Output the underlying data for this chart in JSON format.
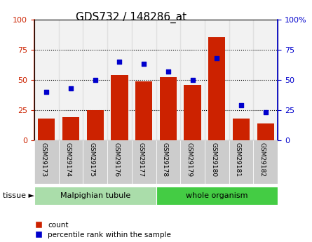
{
  "title": "GDS732 / 148286_at",
  "samples": [
    "GSM29173",
    "GSM29174",
    "GSM29175",
    "GSM29176",
    "GSM29177",
    "GSM29178",
    "GSM29179",
    "GSM29180",
    "GSM29181",
    "GSM29182"
  ],
  "counts": [
    18,
    19,
    25,
    54,
    49,
    52,
    46,
    85,
    18,
    14
  ],
  "percentiles": [
    40,
    43,
    50,
    65,
    63,
    57,
    50,
    68,
    29,
    23
  ],
  "tissue_groups": [
    {
      "label": "Malpighian tubule",
      "start": 0,
      "end": 5,
      "color": "#aaddaa"
    },
    {
      "label": "whole organism",
      "start": 5,
      "end": 10,
      "color": "#44cc44"
    }
  ],
  "bar_color": "#CC2200",
  "dot_color": "#0000CC",
  "ylim": [
    0,
    100
  ],
  "yticks": [
    0,
    25,
    50,
    75,
    100
  ],
  "legend_count_label": "count",
  "legend_pct_label": "percentile rank within the sample",
  "tissue_label": "tissue ►",
  "col_bg_color": "#cccccc",
  "title_fontsize": 11
}
